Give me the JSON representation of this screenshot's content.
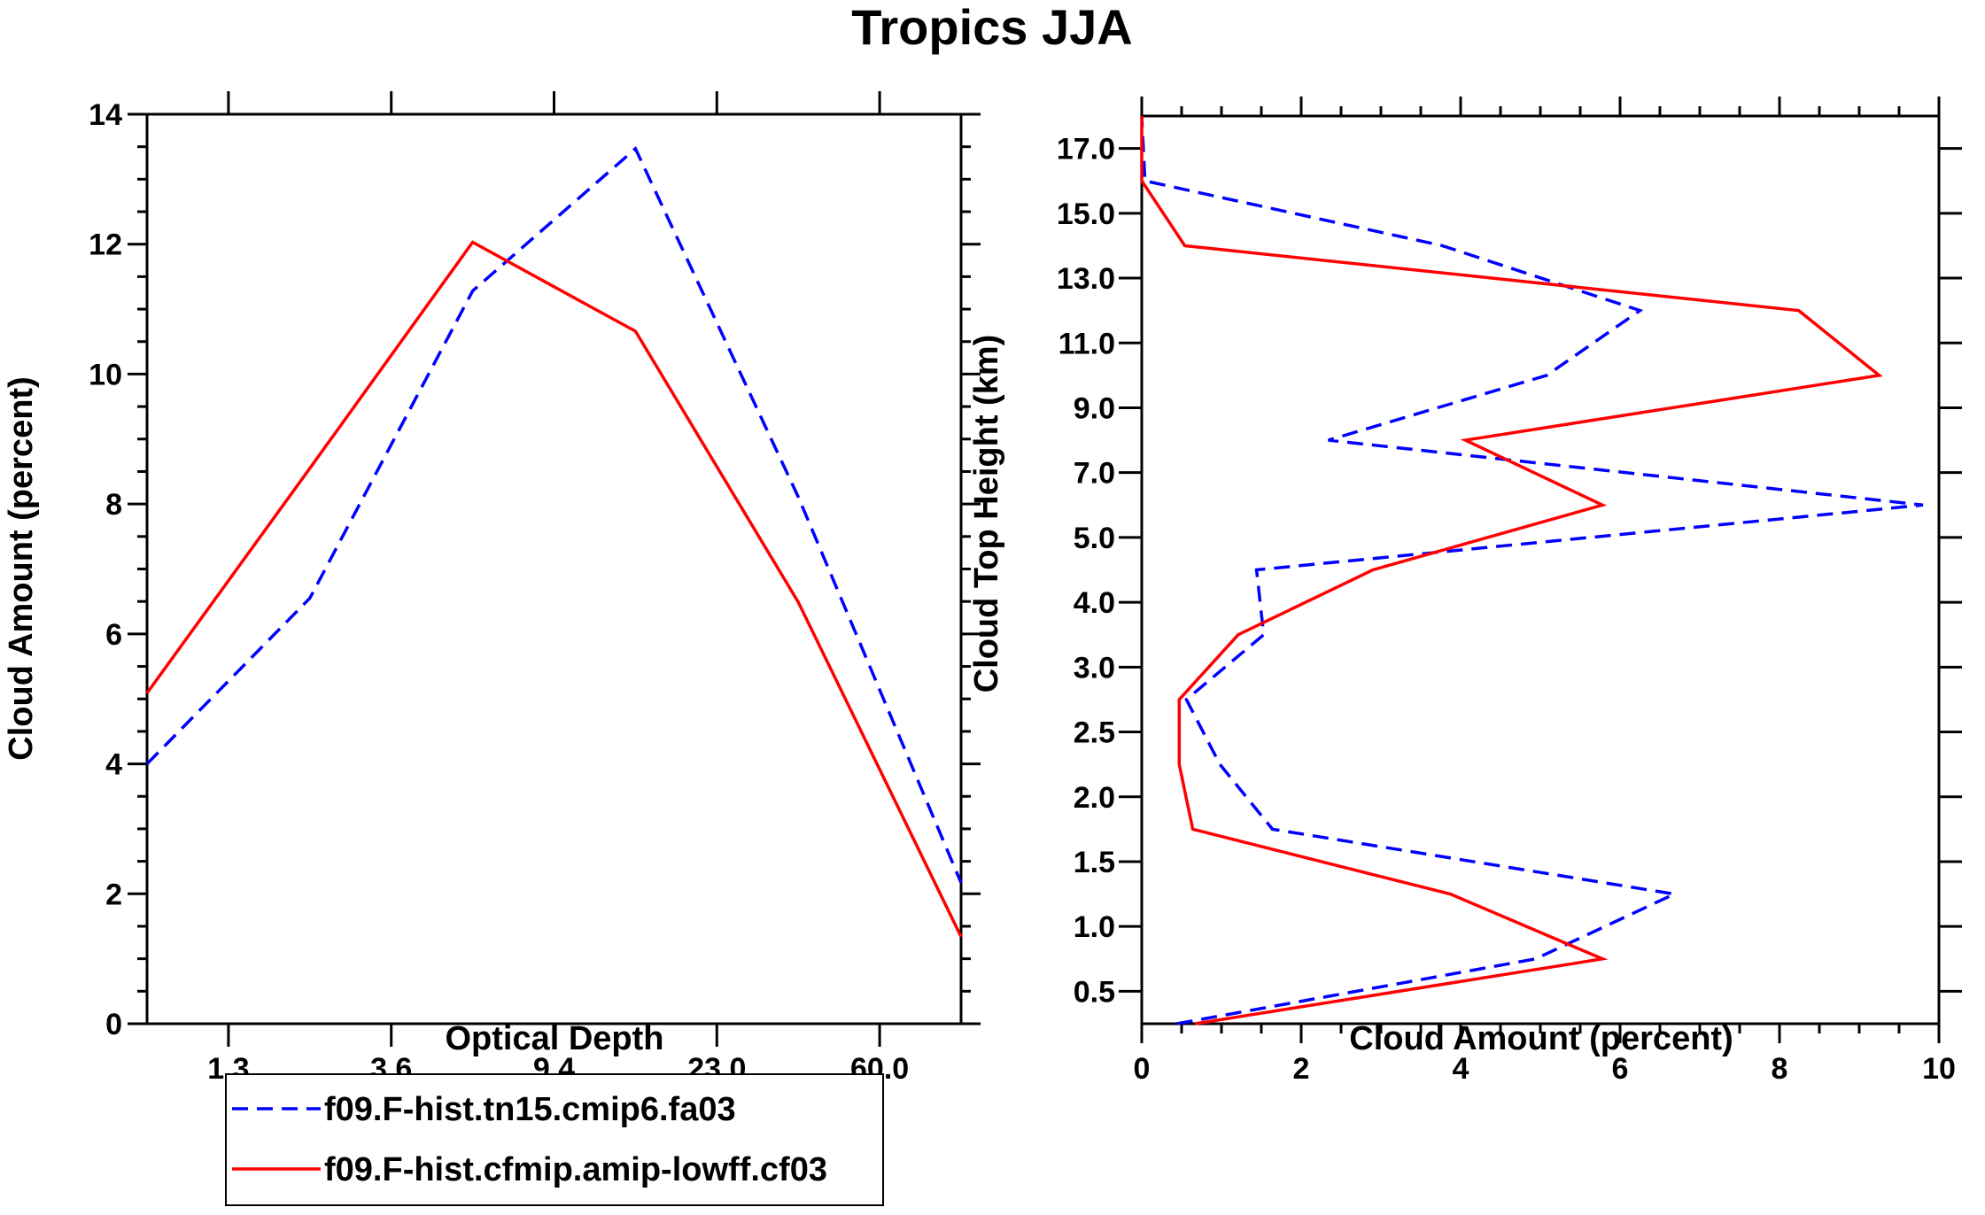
{
  "title": "Tropics JJA",
  "colors": {
    "series1": "#0000ff",
    "series2": "#ff0000"
  },
  "legend": [
    "f09.F-hist.tn15.cmip6.fa03",
    "f09.F-hist.cfmip.amip-lowff.cf03"
  ],
  "chart_data": [
    {
      "type": "line",
      "xlabel": "Optical Depth",
      "ylabel": "Cloud Amount (percent)",
      "ylim": [
        0,
        14
      ],
      "yticks": [
        "0",
        "2",
        "4",
        "6",
        "8",
        "10",
        "12",
        "14"
      ],
      "xtick_labels": [
        "1.3",
        "3.6",
        "9.4",
        "23.0",
        "60.0"
      ],
      "x_bin_index": [
        0,
        1,
        2,
        3,
        4,
        5
      ],
      "series": [
        {
          "name": "f09.F-hist.tn15.cmip6.fa03",
          "style": "dashed",
          "values": [
            4.0,
            6.55,
            11.28,
            13.47,
            8.11,
            2.17
          ]
        },
        {
          "name": "f09.F-hist.cfmip.amip-lowff.cf03",
          "style": "solid",
          "values": [
            5.09,
            8.55,
            12.03,
            10.66,
            6.49,
            1.34
          ]
        }
      ]
    },
    {
      "type": "line",
      "xlabel": "Cloud Amount (percent)",
      "ylabel": "Cloud Top Height (km)",
      "xlim": [
        0,
        10
      ],
      "xticks": [
        "0",
        "2",
        "4",
        "6",
        "8",
        "10"
      ],
      "ytick_labels": [
        "0.5",
        "1.0",
        "1.5",
        "2.0",
        "2.5",
        "3.0",
        "4.0",
        "5.0",
        "7.0",
        "9.0",
        "11.0",
        "13.0",
        "15.0",
        "17.0"
      ],
      "height_levels_km": [
        0.25,
        0.75,
        1.25,
        1.75,
        2.25,
        2.75,
        3.5,
        4.5,
        6,
        8,
        10,
        12,
        14,
        16,
        18
      ],
      "series": [
        {
          "name": "f09.F-hist.tn15.cmip6.fa03",
          "style": "dashed",
          "values": [
            0.44,
            4.94,
            6.68,
            1.64,
            0.98,
            0.56,
            1.53,
            1.44,
            9.8,
            2.34,
            5.08,
            6.25,
            3.77,
            0.04,
            0.0
          ]
        },
        {
          "name": "f09.F-hist.cfmip.amip-lowff.cf03",
          "style": "solid",
          "values": [
            0.67,
            5.78,
            3.87,
            0.64,
            0.47,
            0.47,
            1.21,
            2.9,
            5.78,
            4.06,
            9.25,
            8.24,
            0.54,
            0.0,
            0.0
          ]
        }
      ]
    }
  ]
}
